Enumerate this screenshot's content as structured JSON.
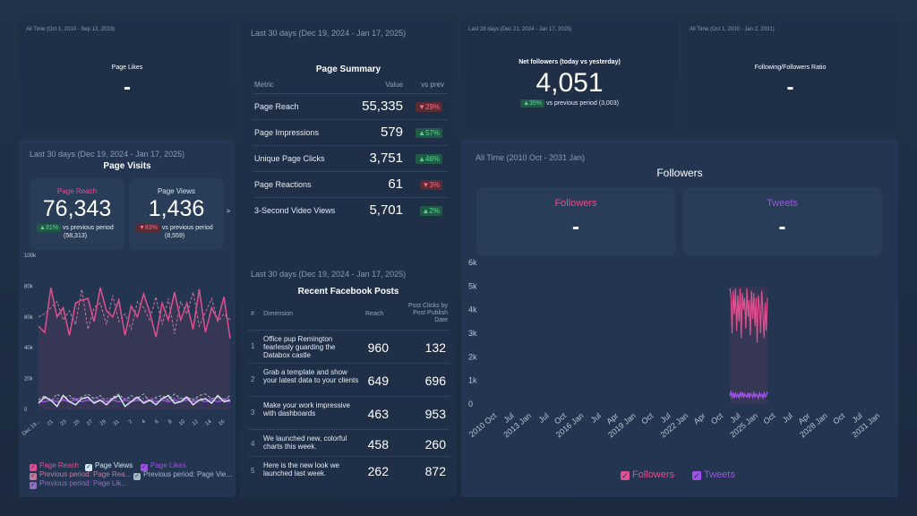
{
  "page_likes": {
    "date": "All Time (Oct 1, 2010 - Sep 13, 2033)",
    "title": "Page Likes",
    "value": "-"
  },
  "page_summary": {
    "date": "Last 30 days (Dec 19, 2024 - Jan 17, 2025)",
    "title": "Page Summary",
    "headers": {
      "metric": "Metric",
      "value": "Value",
      "vs": "vs prev"
    },
    "rows": [
      {
        "metric": "Page Reach",
        "value": "55,335",
        "change": "▼29%",
        "dir": "down"
      },
      {
        "metric": "Page Impressions",
        "value": "579",
        "change": "▲57%",
        "dir": "up"
      },
      {
        "metric": "Unique Page Clicks",
        "value": "3,751",
        "change": "▲46%",
        "dir": "up"
      },
      {
        "metric": "Page Reactions",
        "value": "61",
        "change": "▼3%",
        "dir": "down"
      },
      {
        "metric": "3-Second Video Views",
        "value": "5,701",
        "change": "▲2%",
        "dir": "up"
      }
    ]
  },
  "net_followers": {
    "date": "Last 28 days (Dec 21, 2024 - Jan 17, 2025)",
    "title": "Net followers (today vs yesterday)",
    "value": "4,051",
    "change": "▲35%",
    "compare": "vs previous period (3,003)"
  },
  "ratio": {
    "date": "All Time (Oct 1, 2010 - Jan 2, 2031)",
    "title": "Following/Followers Ratio",
    "value": "-"
  },
  "page_visits": {
    "date": "Last 30 days (Dec 19, 2024 - Jan 17, 2025)",
    "title": "Page Visits",
    "reach": {
      "label": "Page Reach",
      "value": "76,343",
      "change": "▲31%",
      "compare": "vs previous period",
      "prev": "(58,313)"
    },
    "views": {
      "label": "Page Views",
      "value": "1,436",
      "change": "▼83%",
      "compare": "vs previous period",
      "prev": "(8,559)"
    },
    "more": ">"
  },
  "recent_posts": {
    "date": "Last 30 days (Dec 19, 2024 - Jan 17, 2025)",
    "title": "Recent Facebook Posts",
    "headers": {
      "num": "#",
      "dimension": "Dimension",
      "reach": "Reach",
      "clicks": "Post Clicks by Post Publish Date"
    },
    "rows": [
      {
        "n": "1",
        "text": "Office pup Remington fearlessly guarding the Databox castle",
        "reach": "960",
        "clicks": "132"
      },
      {
        "n": "2",
        "text": "Grab a template and show your latest data to your clients",
        "reach": "649",
        "clicks": "696"
      },
      {
        "n": "3",
        "text": "Make your work impressive with dashboards",
        "reach": "463",
        "clicks": "953"
      },
      {
        "n": "4",
        "text": "We launched new, colorful charts this week.",
        "reach": "458",
        "clicks": "260"
      },
      {
        "n": "5",
        "text": "Here is the new look we launched last week.",
        "reach": "262",
        "clicks": "872"
      }
    ]
  },
  "followers_card": {
    "date": "All Time (2010 Oct - 2031 Jan)",
    "title": "Followers",
    "followers": {
      "label": "Followers",
      "value": "-"
    },
    "tweets": {
      "label": "Tweets",
      "value": "-"
    },
    "legend": [
      "Followers",
      "Tweets"
    ]
  },
  "colors": {
    "pink": "#e0508e",
    "purple": "#a050e8",
    "light": "#d8e6f2",
    "bg": "#233550"
  },
  "chart_data": [
    {
      "type": "line",
      "title": "",
      "ylim": [
        0,
        100000
      ],
      "y_ticks": [
        "100k",
        "80k",
        "60k",
        "40k",
        "20k",
        "0"
      ],
      "x_ticks": [
        "Dec 19...",
        "21",
        "23",
        "25",
        "27",
        "29",
        "31",
        "2",
        "4",
        "6",
        "8",
        "10",
        "12",
        "14",
        "16"
      ],
      "legend": [
        "Page Reach",
        "Page Views",
        "Page Likes",
        "Previous period: Page Rea...",
        "Previous period: Page Vie...",
        "Previous period: Page Lik..."
      ],
      "series": [
        {
          "name": "Page Reach",
          "values": [
            54000,
            50000,
            79000,
            60000,
            66000,
            48000,
            69000,
            71000,
            72000,
            57000,
            79000,
            64000,
            60000,
            71000,
            48000,
            67000,
            60000,
            75000,
            63000,
            47000,
            69000,
            58000,
            76000,
            58000,
            69000,
            52000,
            78000,
            50000,
            66000,
            58000,
            73000,
            46000
          ]
        },
        {
          "name": "Page Views",
          "values": [
            4000,
            8000,
            6000,
            2000,
            9000,
            5000,
            3000,
            7000,
            8000,
            4000,
            6000,
            3000,
            7000,
            9000,
            2000,
            5000,
            8000,
            4000,
            6000,
            3000,
            7000,
            9000,
            4000,
            5000,
            8000,
            3000,
            6000,
            7000,
            4000,
            9000,
            5000,
            6000
          ]
        },
        {
          "name": "Page Likes",
          "values": [
            5000,
            5000,
            6000,
            5000,
            6000,
            5000,
            6000,
            5000,
            6000,
            5000,
            6000,
            5000,
            6000,
            5000,
            6000,
            5000,
            6000,
            5000,
            6000,
            5000,
            6000,
            5000,
            6000,
            5000,
            6000,
            5000,
            6000,
            5000,
            6000,
            5000,
            6000,
            5000
          ]
        },
        {
          "name": "Previous period: Page Rea...",
          "values": [
            60000,
            62000,
            66000,
            70000,
            58000,
            64000,
            55000,
            78000,
            52000,
            66000,
            69000,
            55000,
            74000,
            57000,
            62000,
            52000,
            70000,
            66000,
            58000,
            73000,
            55000,
            72000,
            49000,
            70000,
            62000,
            76000,
            54000,
            63000,
            72000,
            57000,
            62000,
            58000
          ]
        },
        {
          "name": "Previous period: Page Vie...",
          "values": [
            6000,
            9000,
            5000,
            10000,
            7000,
            9000,
            6000,
            8000,
            10000,
            7000,
            9000,
            5000,
            8000,
            10000,
            6000,
            9000,
            7000,
            10000,
            5000,
            8000,
            9000,
            6000,
            10000,
            7000,
            8000,
            6000,
            9000,
            10000,
            7000,
            8000,
            6000,
            9000
          ]
        },
        {
          "name": "Previous period: Page Lik...",
          "values": [
            7000,
            7000,
            7000,
            7000,
            7000,
            7000,
            7000,
            7000,
            7000,
            7000,
            7000,
            7000,
            7000,
            7000,
            7000,
            7000,
            7000,
            7000,
            7000,
            7000,
            7000,
            7000,
            7000,
            7000,
            7000,
            7000,
            7000,
            7000,
            7000,
            7000,
            7000,
            7000
          ]
        }
      ]
    },
    {
      "type": "line",
      "title": "",
      "ylim": [
        0,
        6000
      ],
      "y_ticks": [
        "6k",
        "5k",
        "4k",
        "3k",
        "2k",
        "1k",
        "0"
      ],
      "x_ticks": [
        "2010 Oct",
        "Jul",
        "2013 Jan",
        "Jul",
        "Oct",
        "2016 Jan",
        "Jul",
        "Apr",
        "2019 Jan",
        "Oct",
        "Jul",
        "2022 Jan",
        "Apr",
        "Oct",
        "Jul",
        "2025 Jan",
        "Oct",
        "Jul",
        "Apr",
        "2028 Jan",
        "Oct",
        "Jul",
        "2031 Jan"
      ],
      "x_range": [
        "2010 Oct",
        "2031 Jan"
      ],
      "series": [
        {
          "name": "Followers",
          "values": [
            4900,
            4600,
            3000,
            4800,
            3800,
            4900,
            3100,
            4600,
            3500,
            4900,
            2800,
            4700,
            4000,
            4500,
            3200,
            4900,
            3700,
            4400,
            2900,
            4800,
            3600,
            4700,
            3300,
            4500,
            2600,
            4600,
            4100,
            3000,
            4800,
            3900,
            2800,
            4300,
            3100,
            4500
          ]
        },
        {
          "name": "Tweets",
          "values": [
            350,
            500,
            300,
            450,
            250,
            480,
            320,
            400,
            280,
            460,
            330,
            500,
            270,
            420,
            350,
            300,
            480,
            260,
            440,
            380,
            290,
            470,
            310,
            420,
            360,
            250,
            490,
            330,
            400,
            270,
            460,
            310,
            380,
            520
          ]
        }
      ]
    }
  ]
}
